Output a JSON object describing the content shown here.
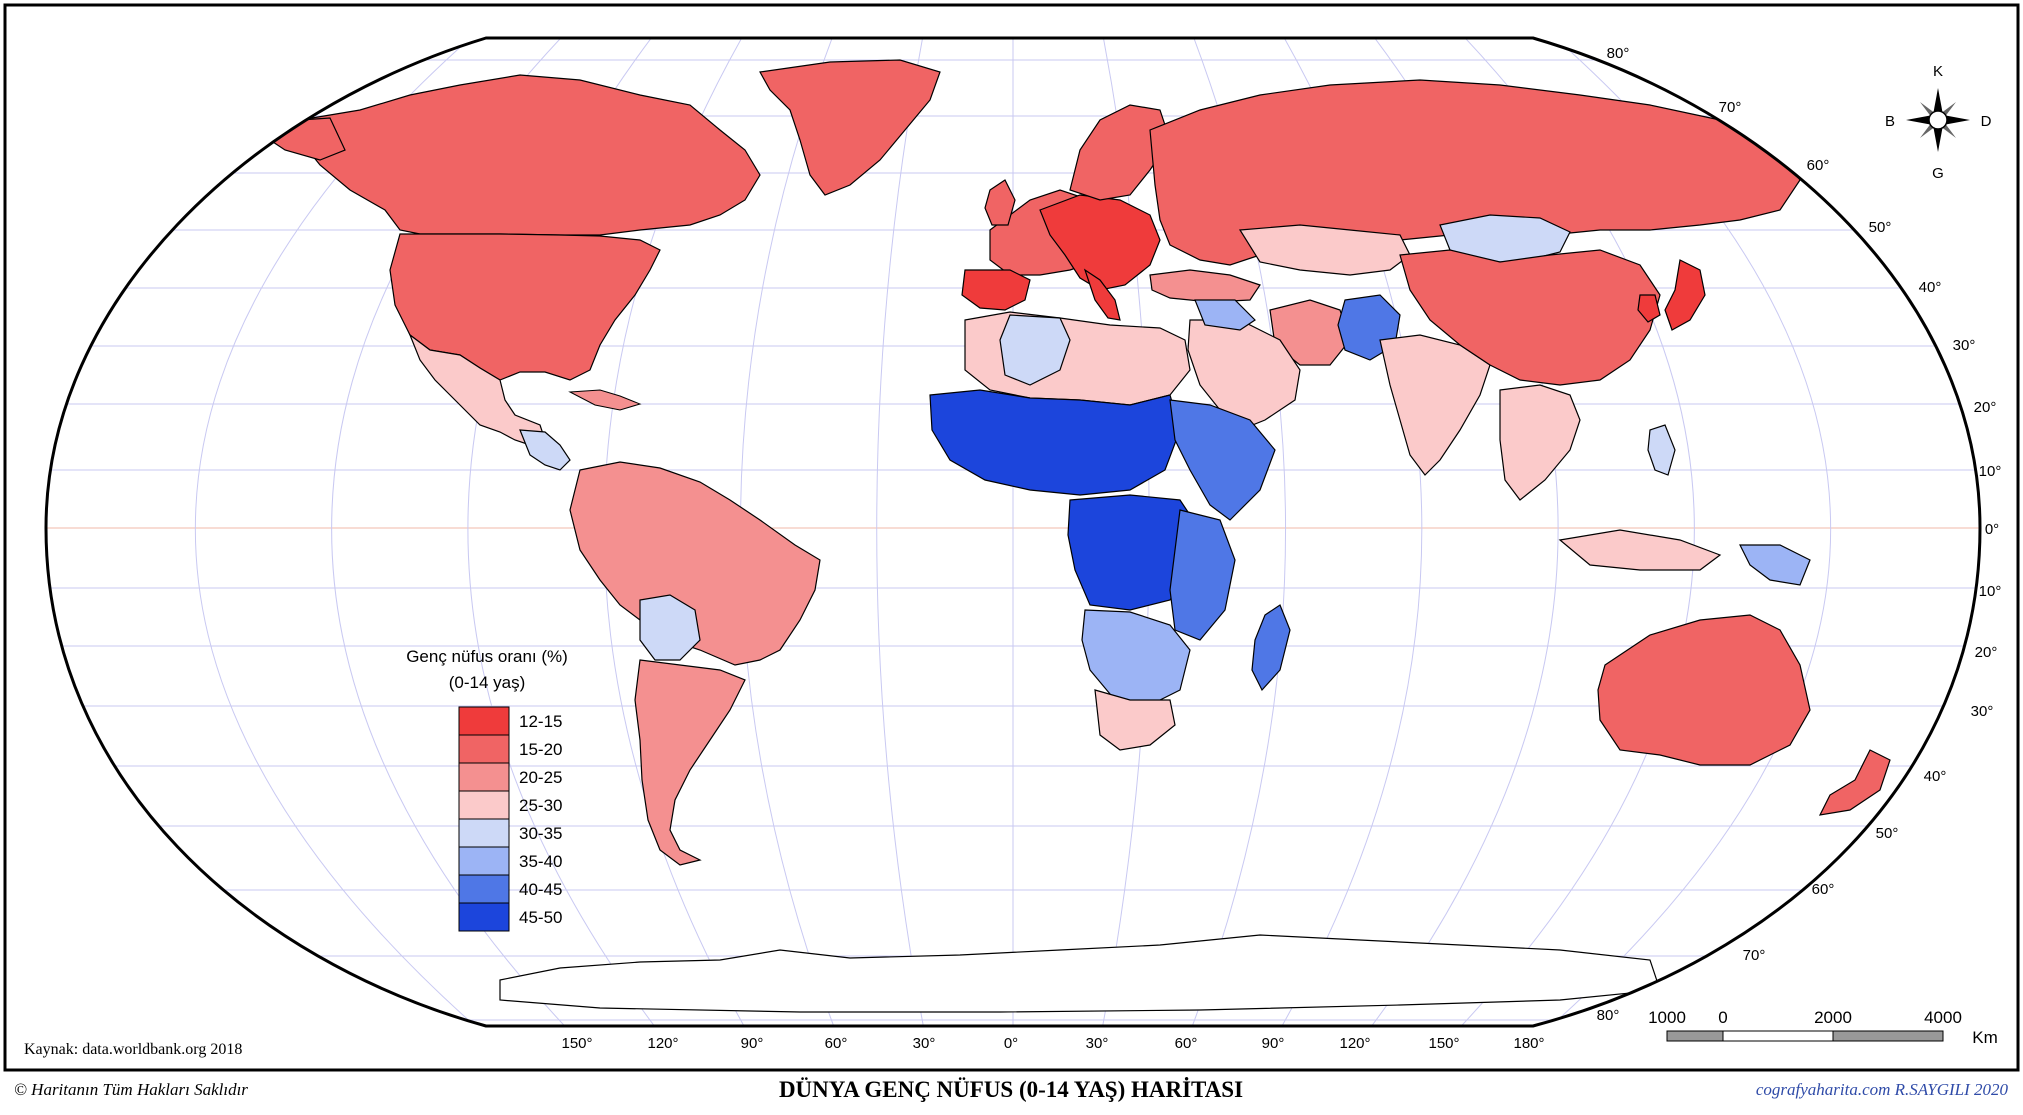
{
  "map": {
    "title": "DÜNYA GENÇ NÜFUS (0-14 YAŞ) HARİTASI",
    "copyright": "© Haritanın Tüm Hakları Saklıdır",
    "credit": "cografyaharita.com  R.SAYGILI 2020",
    "source": "Kaynak: data.worldbank.org 2018"
  },
  "legend": {
    "title_line1": "Genç nüfus oranı (%)",
    "title_line2": "(0-14 yaş)",
    "classes": [
      {
        "label": "12-15",
        "color": "#ef3b3b"
      },
      {
        "label": "15-20",
        "color": "#f06464"
      },
      {
        "label": "20-25",
        "color": "#f49090"
      },
      {
        "label": "25-30",
        "color": "#fbcaca"
      },
      {
        "label": "30-35",
        "color": "#cdd9f7"
      },
      {
        "label": "35-40",
        "color": "#9cb4f5"
      },
      {
        "label": "40-45",
        "color": "#4f77e6"
      },
      {
        "label": "45-50",
        "color": "#1c45dc"
      }
    ]
  },
  "compass": {
    "north": "K",
    "south": "G",
    "east": "D",
    "west": "B"
  },
  "latitude_labels": [
    "80°",
    "70°",
    "60°",
    "50°",
    "40°",
    "30°",
    "20°",
    "10°",
    "0°",
    "10°",
    "20°",
    "30°",
    "40°",
    "50°",
    "60°",
    "70°",
    "80°"
  ],
  "longitude_labels": [
    "150°",
    "120°",
    "90°",
    "60°",
    "30°",
    "0°",
    "30°",
    "60°",
    "90°",
    "120°",
    "150°",
    "180°"
  ],
  "scale_bar": {
    "labels": [
      "1000",
      "0",
      "2000",
      "4000"
    ],
    "unit": "Km"
  },
  "colors": {
    "ocean": "#ffffff",
    "graticule": "#c9c9f2",
    "equator": "#f2b8a8",
    "antarctica": "#ffffff",
    "border": "#000000"
  }
}
